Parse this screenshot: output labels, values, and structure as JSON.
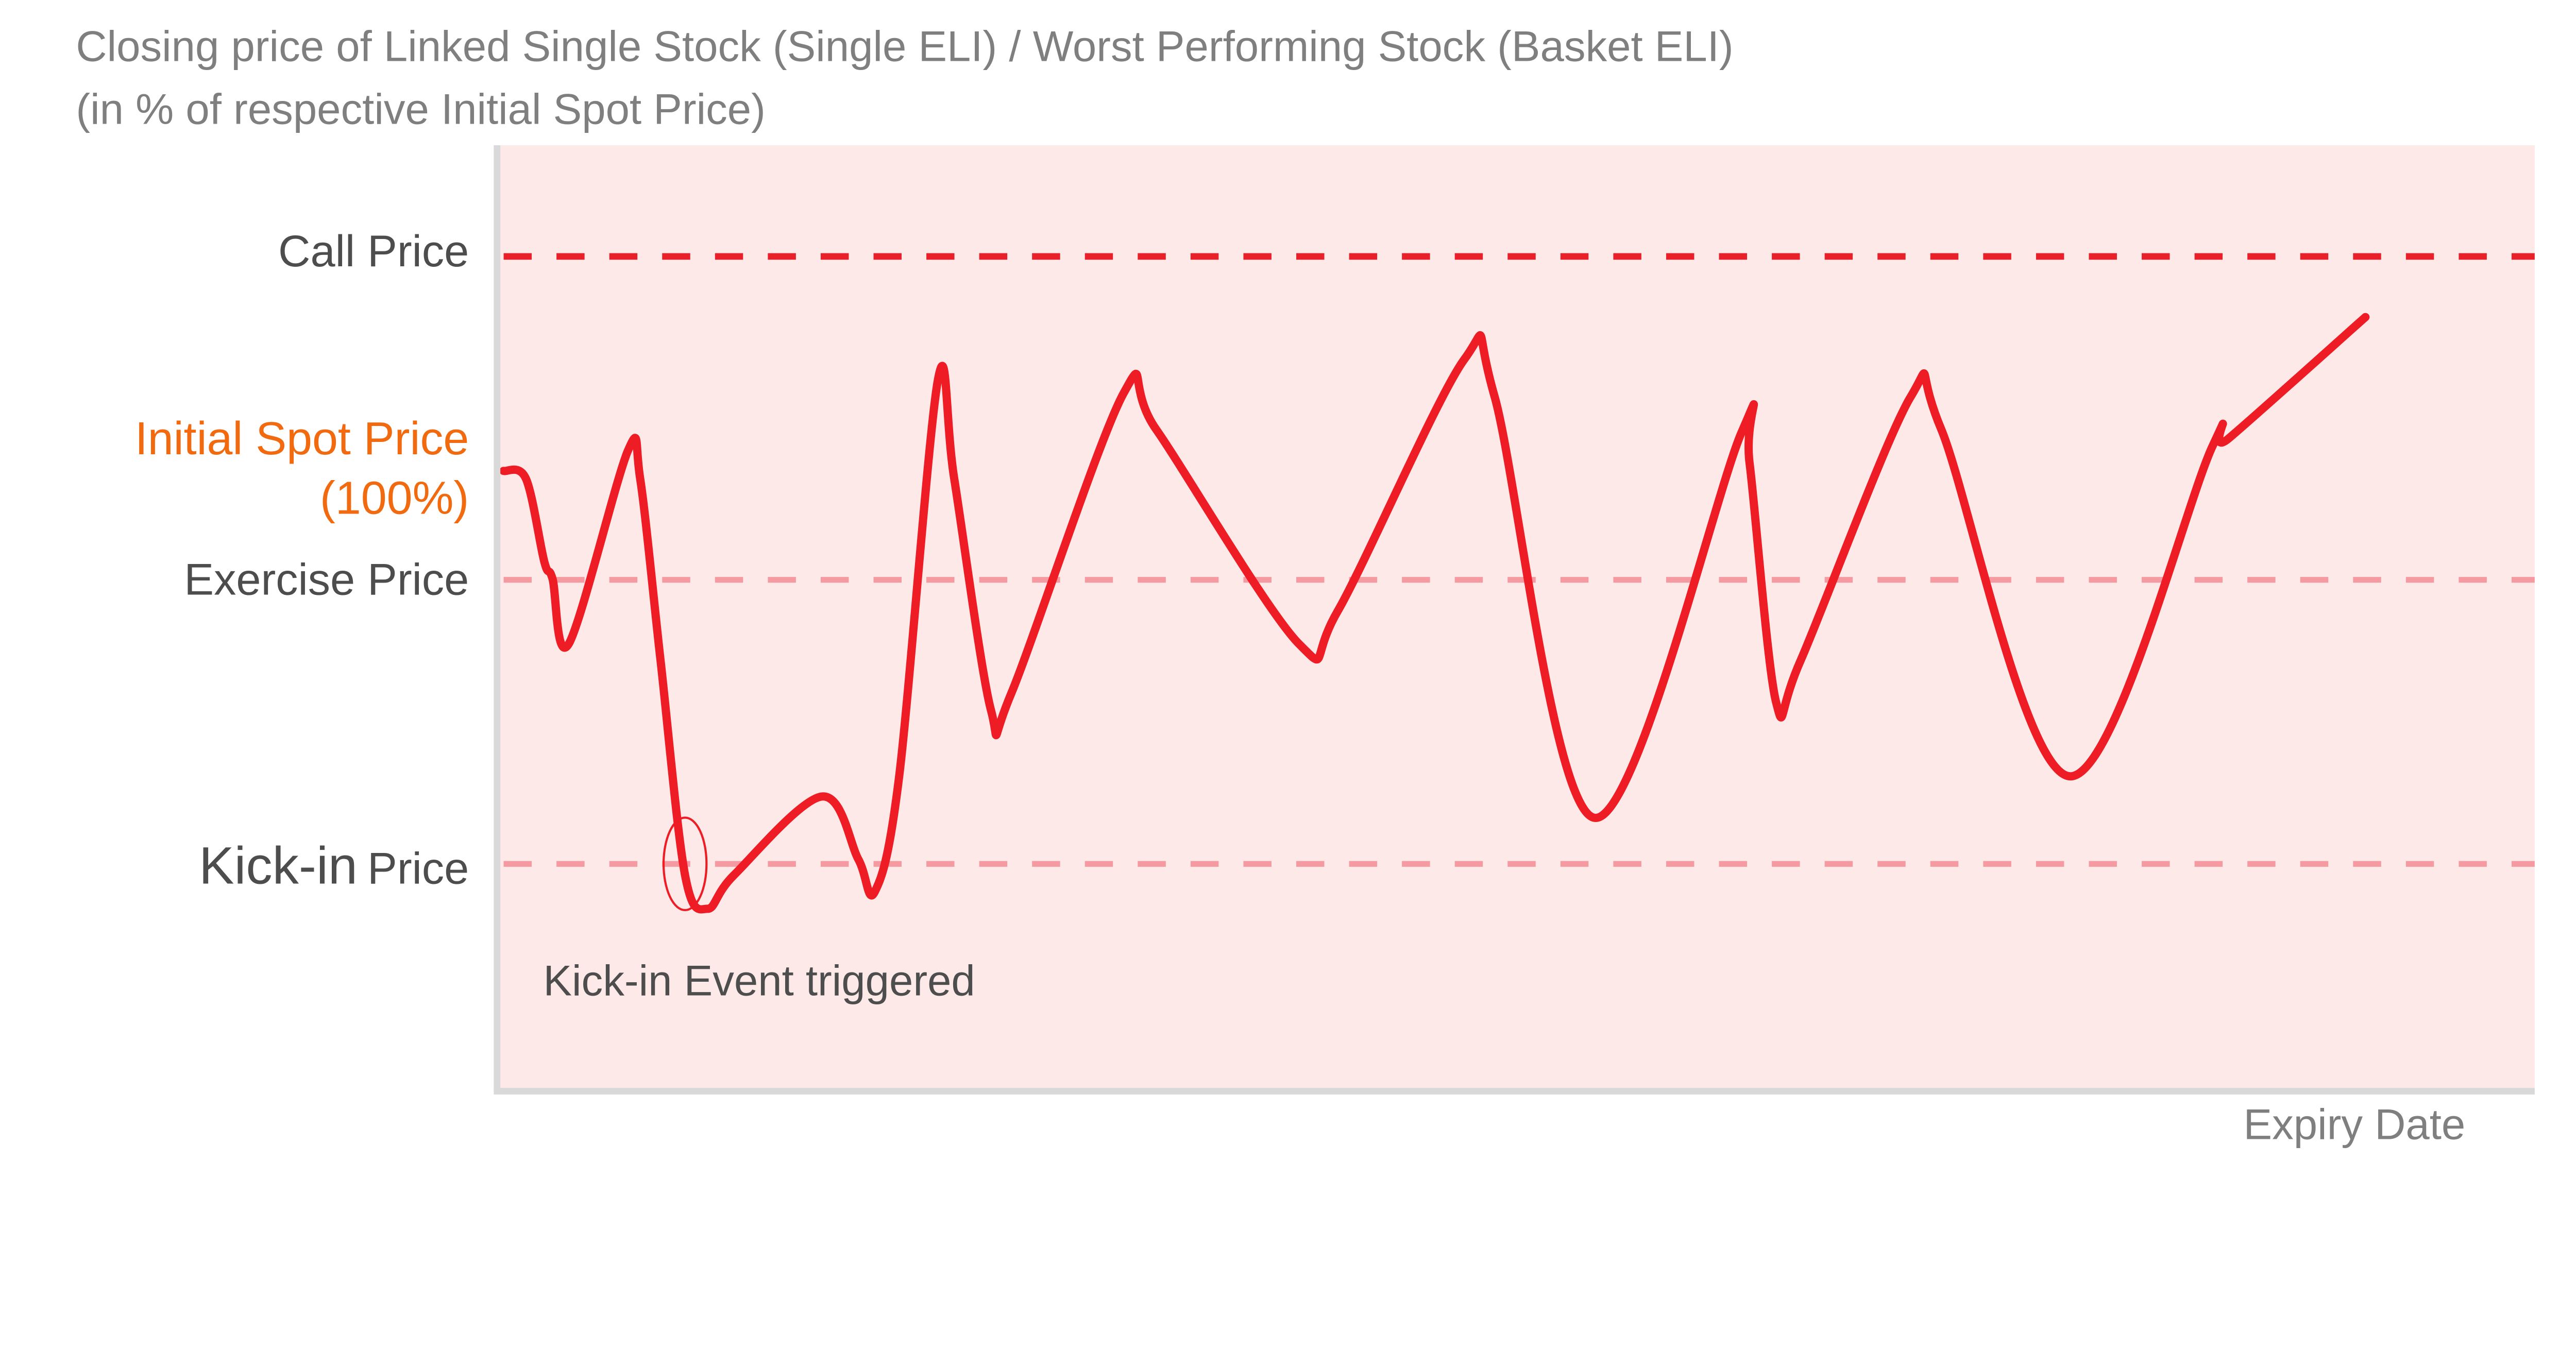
{
  "chart_data": {
    "type": "line",
    "title": "Closing price of Linked Single Stock (Single ELI) / Worst Performing Stock (Basket ELI)",
    "subtitle": "(in % of respective Initial Spot Price)",
    "xlabel": "Expiry Date",
    "ylabel": "",
    "xlim": [
      0,
      100
    ],
    "ylim": [
      44.6,
      128.7
    ],
    "grid": false,
    "levels": [
      {
        "name": "Call Price",
        "value": 118.8,
        "color": "#e8202a",
        "style": "dashed"
      },
      {
        "name": "Exercise Price",
        "value": 90.0,
        "color": "#f59aa0",
        "style": "dashed"
      },
      {
        "name": "Kick-in Price",
        "value": 64.7,
        "color": "#f59aa0",
        "style": "dashed"
      }
    ],
    "initial_spot": {
      "label": "Initial Spot Price",
      "sublabel": "(100%)",
      "value": 100,
      "color": "#f26a10"
    },
    "kickin_label_main": "Kick-in",
    "kickin_label_rest": "Price",
    "annotation": {
      "text": "Kick-in Event triggered",
      "x": 9.3,
      "y": 64.7
    },
    "series": [
      {
        "name": "Closing price",
        "color": "#ee1c25",
        "x": [
          0.4,
          1.5,
          2.4,
          2.8,
          3.6,
          6.5,
          7.1,
          8.1,
          9.3,
          10.4,
          11.7,
          16.0,
          17.8,
          18.6,
          19.8,
          21.7,
          22.5,
          24.3,
          25.3,
          30.8,
          32.4,
          39.4,
          41.3,
          47.5,
          49.0,
          53.9,
          61.1,
          61.5,
          62.8,
          64.0,
          69.4,
          70.9,
          77.2,
          84.2,
          85.0,
          91.7
        ],
        "y": [
          99.7,
          99.0,
          91.6,
          90.1,
          84.3,
          101.5,
          99.0,
          82.8,
          63.7,
          60.7,
          63.7,
          70.7,
          65.1,
          62.2,
          72.5,
          107.8,
          99.0,
          78.4,
          79.9,
          106.6,
          103.4,
          84.3,
          87.2,
          109.6,
          106.3,
          68.8,
          103.1,
          100.4,
          79.1,
          82.8,
          106.3,
          103.4,
          72.5,
          101.9,
          102.6,
          113.4
        ]
      }
    ],
    "colors": {
      "background": "#fde9e8",
      "axis": "#d9d9d9"
    }
  }
}
